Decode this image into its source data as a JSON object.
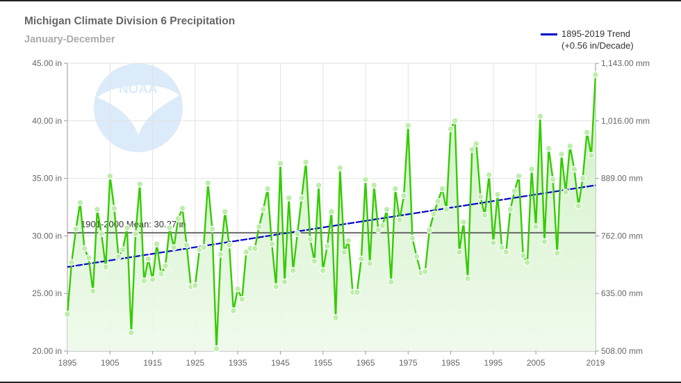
{
  "title": "Michigan Climate Division 6 Precipitation",
  "subtitle": "January-December",
  "legend": {
    "line1": "1895-2019 Trend",
    "line2": "(+0.56 in/Decade)"
  },
  "logo_text": "NOAA",
  "mean_label": "1901-2000 Mean: 30.27 in",
  "colors": {
    "series": "#33cc00",
    "fill": "#d9f5d0",
    "trend": "#0000cc",
    "mean": "#666666",
    "grid": "#e2e2e2"
  },
  "chart_data": {
    "type": "line",
    "title": "Michigan Climate Division 6 Precipitation",
    "subtitle": "January-December",
    "x_range": [
      1895,
      2019
    ],
    "ylim_in": [
      20,
      45
    ],
    "ylim_mm": [
      508,
      1143
    ],
    "x_ticks": [
      "1895",
      "1905",
      "1915",
      "1925",
      "1935",
      "1945",
      "1955",
      "1965",
      "1975",
      "1985",
      "1995",
      "2005",
      "2019"
    ],
    "y_ticks_left": [
      "45.00 in",
      "40.00 in",
      "35.00 in",
      "30.00 in",
      "25.00 in",
      "20.00 in"
    ],
    "y_ticks_right": [
      "1,143.00 mm",
      "1,016.00 mm",
      "889.00 mm",
      "762.00 mm",
      "635.00 mm",
      "508.00 mm"
    ],
    "mean": {
      "label": "1901-2000 Mean: 30.27 in",
      "value": 30.27
    },
    "trend": {
      "label": "1895-2019 Trend",
      "slope_label": "(+0.56 in/Decade)",
      "start": [
        1895,
        27.3
      ],
      "end": [
        2019,
        34.4
      ]
    },
    "grid": true,
    "legend_position": "top-right",
    "series": [
      {
        "values": [
          [
            1895,
            23.2
          ],
          [
            1896,
            27.7
          ],
          [
            1897,
            30.6
          ],
          [
            1898,
            32.9
          ],
          [
            1899,
            28.9
          ],
          [
            1900,
            28.1
          ],
          [
            1901,
            25.2
          ],
          [
            1902,
            32.3
          ],
          [
            1903,
            30.2
          ],
          [
            1904,
            27.3
          ],
          [
            1905,
            35.2
          ],
          [
            1906,
            32.4
          ],
          [
            1907,
            28.2
          ],
          [
            1908,
            28.8
          ],
          [
            1909,
            30.7
          ],
          [
            1910,
            21.6
          ],
          [
            1911,
            30.2
          ],
          [
            1912,
            34.5
          ],
          [
            1913,
            26.1
          ],
          [
            1914,
            28.0
          ],
          [
            1915,
            26.2
          ],
          [
            1916,
            29.3
          ],
          [
            1917,
            26.7
          ],
          [
            1918,
            27.4
          ],
          [
            1919,
            30.7
          ],
          [
            1920,
            29.0
          ],
          [
            1921,
            31.5
          ],
          [
            1922,
            32.4
          ],
          [
            1923,
            29.2
          ],
          [
            1924,
            25.6
          ],
          [
            1925,
            25.7
          ],
          [
            1926,
            28.8
          ],
          [
            1927,
            29.0
          ],
          [
            1928,
            34.6
          ],
          [
            1929,
            30.6
          ],
          [
            1930,
            20.2
          ],
          [
            1931,
            28.4
          ],
          [
            1932,
            32.1
          ],
          [
            1933,
            29.2
          ],
          [
            1934,
            23.5
          ],
          [
            1935,
            25.4
          ],
          [
            1936,
            24.5
          ],
          [
            1937,
            28.6
          ],
          [
            1938,
            28.9
          ],
          [
            1939,
            28.9
          ],
          [
            1940,
            30.8
          ],
          [
            1941,
            32.3
          ],
          [
            1942,
            34.1
          ],
          [
            1943,
            29.3
          ],
          [
            1944,
            25.6
          ],
          [
            1945,
            36.3
          ],
          [
            1946,
            26.0
          ],
          [
            1947,
            33.3
          ],
          [
            1948,
            27.0
          ],
          [
            1949,
            30.2
          ],
          [
            1950,
            33.3
          ],
          [
            1951,
            36.4
          ],
          [
            1952,
            29.7
          ],
          [
            1953,
            27.8
          ],
          [
            1954,
            34.4
          ],
          [
            1955,
            27.0
          ],
          [
            1956,
            29.1
          ],
          [
            1957,
            32.1
          ],
          [
            1958,
            22.9
          ],
          [
            1959,
            35.9
          ],
          [
            1960,
            28.6
          ],
          [
            1961,
            29.6
          ],
          [
            1962,
            25.1
          ],
          [
            1963,
            25.1
          ],
          [
            1964,
            28.0
          ],
          [
            1965,
            34.9
          ],
          [
            1966,
            27.6
          ],
          [
            1967,
            34.4
          ],
          [
            1968,
            30.5
          ],
          [
            1969,
            30.9
          ],
          [
            1970,
            32.3
          ],
          [
            1971,
            26.0
          ],
          [
            1972,
            34.1
          ],
          [
            1973,
            31.4
          ],
          [
            1974,
            33.5
          ],
          [
            1975,
            39.6
          ],
          [
            1976,
            29.8
          ],
          [
            1977,
            28.2
          ],
          [
            1978,
            26.8
          ],
          [
            1979,
            26.9
          ],
          [
            1980,
            30.5
          ],
          [
            1981,
            31.9
          ],
          [
            1982,
            33.0
          ],
          [
            1983,
            34.1
          ],
          [
            1984,
            32.3
          ],
          [
            1985,
            39.3
          ],
          [
            1986,
            40.0
          ],
          [
            1987,
            28.6
          ],
          [
            1988,
            31.2
          ],
          [
            1989,
            26.3
          ],
          [
            1990,
            37.5
          ],
          [
            1991,
            38.0
          ],
          [
            1992,
            33.4
          ],
          [
            1993,
            31.8
          ],
          [
            1994,
            35.3
          ],
          [
            1995,
            29.4
          ],
          [
            1996,
            33.6
          ],
          [
            1997,
            29.0
          ],
          [
            1998,
            28.6
          ],
          [
            1999,
            32.3
          ],
          [
            2000,
            33.9
          ],
          [
            2001,
            35.2
          ],
          [
            2002,
            28.3
          ],
          [
            2003,
            27.7
          ],
          [
            2004,
            35.8
          ],
          [
            2005,
            30.8
          ],
          [
            2006,
            40.4
          ],
          [
            2007,
            29.5
          ],
          [
            2008,
            37.6
          ],
          [
            2009,
            34.9
          ],
          [
            2010,
            28.5
          ],
          [
            2011,
            37.1
          ],
          [
            2012,
            33.8
          ],
          [
            2013,
            37.8
          ],
          [
            2014,
            35.8
          ],
          [
            2015,
            32.6
          ],
          [
            2016,
            35.0
          ],
          [
            2017,
            39.0
          ],
          [
            2018,
            37.0
          ],
          [
            2019,
            44.0
          ]
        ]
      }
    ]
  }
}
